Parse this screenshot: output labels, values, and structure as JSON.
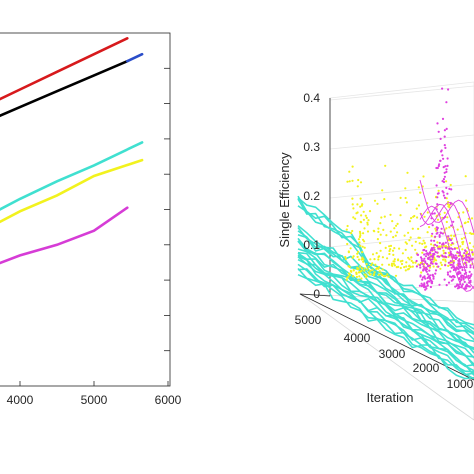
{
  "chart_data": [
    {
      "type": "line",
      "xlabel": "",
      "ylabel": "",
      "title": "",
      "xlim": [
        3000,
        6000
      ],
      "x_ticks": [
        "4000",
        "5000",
        "6000"
      ],
      "grid": false,
      "series": [
        {
          "color": "#d7191c",
          "points": [
            [
              3000,
              0.74
            ],
            [
              3500,
              0.79
            ],
            [
              4000,
              0.84
            ],
            [
              4500,
              0.89
            ],
            [
              5000,
              0.94
            ],
            [
              5450,
              0.985
            ]
          ]
        },
        {
          "color": "#000000",
          "points": [
            [
              3000,
              0.7
            ],
            [
              3500,
              0.745
            ],
            [
              4000,
              0.79
            ],
            [
              4500,
              0.835
            ],
            [
              5000,
              0.88
            ],
            [
              5450,
              0.92
            ]
          ]
        },
        {
          "color": "#2a4dc9",
          "points": [
            [
              5450,
              0.92
            ],
            [
              5650,
              0.94
            ]
          ]
        },
        {
          "color": "#40e0d0",
          "points": [
            [
              3000,
              0.43
            ],
            [
              3500,
              0.475
            ],
            [
              4000,
              0.53
            ],
            [
              4500,
              0.58
            ],
            [
              5000,
              0.625
            ],
            [
              5650,
              0.69
            ]
          ]
        },
        {
          "color": "#f2f21e",
          "points": [
            [
              3000,
              0.4
            ],
            [
              3500,
              0.44
            ],
            [
              4000,
              0.495
            ],
            [
              4500,
              0.54
            ],
            [
              5000,
              0.595
            ],
            [
              5650,
              0.64
            ]
          ]
        },
        {
          "color": "#d63cd6",
          "points": [
            [
              3000,
              0.3
            ],
            [
              3500,
              0.33
            ],
            [
              4000,
              0.37
            ],
            [
              4500,
              0.4
            ],
            [
              5000,
              0.44
            ],
            [
              5450,
              0.505
            ]
          ]
        }
      ]
    },
    {
      "type": "scatter",
      "subtype": "3d",
      "ylabel": "Single Efficiency",
      "xlabel": "Iteration",
      "z_ticks": [
        "0",
        "0.1",
        "0.2",
        "0.3",
        "0.4"
      ],
      "x_ticks": [
        "5000",
        "4000",
        "3000",
        "2000",
        "1000"
      ],
      "zlim": [
        0,
        0.4
      ],
      "series_colors": [
        "#40e0d0",
        "#f2f21e",
        "#e040e0"
      ]
    }
  ]
}
